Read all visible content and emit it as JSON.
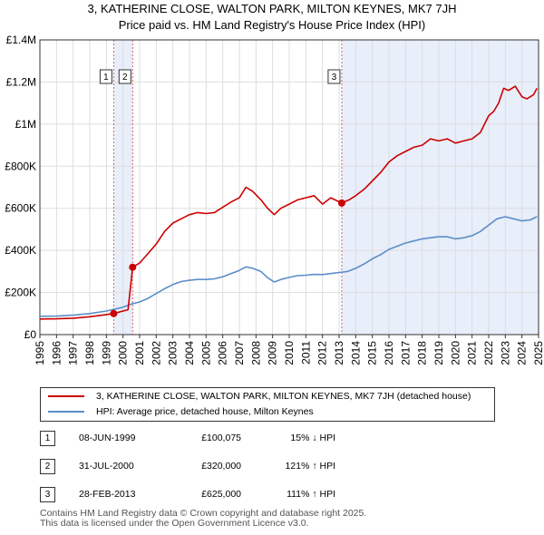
{
  "chart_data": {
    "type": "line",
    "title": "3, KATHERINE CLOSE, WALTON PARK, MILTON KEYNES, MK7 7JH",
    "subtitle": "Price paid vs. HM Land Registry's House Price Index (HPI)",
    "xlim": [
      1995,
      2025
    ],
    "ylim": [
      0,
      1400000
    ],
    "yticks": [
      {
        "value": 0,
        "label": "£0"
      },
      {
        "value": 200000,
        "label": "£200K"
      },
      {
        "value": 400000,
        "label": "£400K"
      },
      {
        "value": 600000,
        "label": "£600K"
      },
      {
        "value": 800000,
        "label": "£800K"
      },
      {
        "value": 1000000,
        "label": "£1M"
      },
      {
        "value": 1200000,
        "label": "£1.2M"
      },
      {
        "value": 1400000,
        "label": "£1.4M"
      }
    ],
    "xticks": [
      "1995",
      "1996",
      "1997",
      "1998",
      "1999",
      "2000",
      "2001",
      "2002",
      "2003",
      "2004",
      "2005",
      "2006",
      "2007",
      "2008",
      "2009",
      "2010",
      "2011",
      "2012",
      "2013",
      "2014",
      "2015",
      "2016",
      "2017",
      "2018",
      "2019",
      "2020",
      "2021",
      "2022",
      "2023",
      "2024",
      "2025"
    ],
    "shaded_ranges": [
      [
        1999.44,
        2000.58
      ],
      [
        2013.16,
        2025.0
      ]
    ],
    "series": [
      {
        "name": "3, KATHERINE CLOSE, WALTON PARK, MILTON KEYNES, MK7 7JH (detached house)",
        "color": "#cc0000",
        "x": [
          1995,
          1996,
          1997,
          1998,
          1999.0,
          1999.44,
          1999.9,
          2000.3,
          2000.58,
          2001.0,
          2001.5,
          2002.0,
          2002.5,
          2003.0,
          2003.5,
          2004.0,
          2004.5,
          2005.0,
          2005.5,
          2006.0,
          2006.5,
          2007.0,
          2007.4,
          2007.8,
          2008.3,
          2008.7,
          2009.1,
          2009.5,
          2010.0,
          2010.5,
          2011.0,
          2011.5,
          2012.0,
          2012.5,
          2013.16,
          2013.6,
          2014.0,
          2014.5,
          2015.0,
          2015.5,
          2016.0,
          2016.5,
          2017.0,
          2017.5,
          2018.0,
          2018.5,
          2019.0,
          2019.5,
          2020.0,
          2020.5,
          2021.0,
          2021.5,
          2022.0,
          2022.3,
          2022.6,
          2022.9,
          2023.2,
          2023.6,
          2024.0,
          2024.3,
          2024.7,
          2024.9
        ],
        "values": [
          74000,
          75000,
          78000,
          85000,
          95000,
          100075,
          110000,
          118000,
          320000,
          340000,
          385000,
          430000,
          490000,
          530000,
          550000,
          570000,
          580000,
          575000,
          580000,
          605000,
          630000,
          650000,
          700000,
          680000,
          640000,
          600000,
          570000,
          600000,
          620000,
          640000,
          650000,
          660000,
          620000,
          650000,
          625000,
          640000,
          660000,
          690000,
          730000,
          770000,
          820000,
          850000,
          870000,
          890000,
          900000,
          930000,
          920000,
          930000,
          910000,
          920000,
          930000,
          960000,
          1040000,
          1060000,
          1100000,
          1170000,
          1160000,
          1180000,
          1130000,
          1120000,
          1140000,
          1170000
        ]
      },
      {
        "name": "HPI: Average price, detached house, Milton Keynes",
        "color": "#5b8ec8",
        "x": [
          1995,
          1996,
          1997,
          1998,
          1999,
          2000,
          2000.5,
          2001,
          2001.5,
          2002,
          2002.5,
          2003,
          2003.5,
          2004,
          2004.5,
          2005,
          2005.5,
          2006,
          2006.5,
          2007,
          2007.4,
          2007.8,
          2008.3,
          2008.7,
          2009.1,
          2009.5,
          2010,
          2010.5,
          2011,
          2011.5,
          2012,
          2012.5,
          2013,
          2013.5,
          2014,
          2014.5,
          2015,
          2015.5,
          2016,
          2016.5,
          2017,
          2017.5,
          2018,
          2018.5,
          2019,
          2019.5,
          2020,
          2020.5,
          2021,
          2021.5,
          2022,
          2022.5,
          2023,
          2023.5,
          2024,
          2024.5,
          2024.9
        ],
        "values": [
          87000,
          88000,
          92000,
          100000,
          112000,
          130000,
          145000,
          155000,
          172000,
          195000,
          218000,
          238000,
          252000,
          258000,
          262000,
          262000,
          265000,
          275000,
          290000,
          305000,
          322000,
          315000,
          300000,
          270000,
          250000,
          262000,
          272000,
          280000,
          282000,
          286000,
          285000,
          290000,
          295000,
          300000,
          315000,
          335000,
          360000,
          380000,
          405000,
          420000,
          435000,
          445000,
          455000,
          460000,
          465000,
          465000,
          455000,
          460000,
          470000,
          490000,
          520000,
          550000,
          560000,
          550000,
          540000,
          545000,
          560000
        ]
      }
    ],
    "sales": [
      {
        "marker": "1",
        "x": 1999.44,
        "value": 100075
      },
      {
        "marker": "2",
        "x": 2000.58,
        "value": 320000
      },
      {
        "marker": "3",
        "x": 2013.16,
        "value": 625000
      }
    ]
  },
  "legend": {
    "property_label": "3, KATHERINE CLOSE, WALTON PARK, MILTON KEYNES, MK7 7JH (detached house)",
    "hpi_label": "HPI: Average price, detached house, Milton Keynes",
    "property_color": "#cc0000",
    "hpi_color": "#5b8ec8"
  },
  "transactions": [
    {
      "marker": "1",
      "date": "08-JUN-1999",
      "price": "£100,075",
      "hpi": "15% ↓ HPI"
    },
    {
      "marker": "2",
      "date": "31-JUL-2000",
      "price": "£320,000",
      "hpi": "121% ↑ HPI"
    },
    {
      "marker": "3",
      "date": "28-FEB-2013",
      "price": "£625,000",
      "hpi": "111% ↑ HPI"
    }
  ],
  "footer": {
    "line1": "Contains HM Land Registry data © Crown copyright and database right 2025.",
    "line2": "This data is licensed under the Open Government Licence v3.0."
  }
}
